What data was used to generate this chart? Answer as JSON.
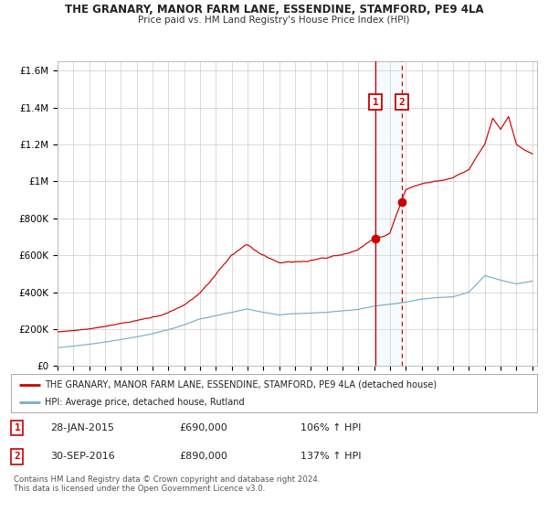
{
  "title": "THE GRANARY, MANOR FARM LANE, ESSENDINE, STAMFORD, PE9 4LA",
  "subtitle": "Price paid vs. HM Land Registry's House Price Index (HPI)",
  "red_label": "THE GRANARY, MANOR FARM LANE, ESSENDINE, STAMFORD, PE9 4LA (detached house)",
  "blue_label": "HPI: Average price, detached house, Rutland",
  "sale1_date": "28-JAN-2015",
  "sale1_price": 690000,
  "sale1_pct": "106%",
  "sale2_date": "30-SEP-2016",
  "sale2_price": 890000,
  "sale2_pct": "137%",
  "footer": "Contains HM Land Registry data © Crown copyright and database right 2024.\nThis data is licensed under the Open Government Licence v3.0.",
  "ylim": [
    0,
    1650000
  ],
  "bg_color": "#ffffff",
  "grid_color": "#cccccc",
  "red_color": "#cc0000",
  "blue_color": "#7aadcc",
  "sale1_x": 2015.08,
  "sale2_x": 2016.75,
  "blue_knots_x": [
    1995,
    1996,
    1997,
    1998,
    1999,
    2000,
    2001,
    2002,
    2003,
    2004,
    2005,
    2006,
    2007,
    2008,
    2009,
    2010,
    2011,
    2012,
    2013,
    2014,
    2015,
    2016,
    2017,
    2018,
    2019,
    2020,
    2021,
    2022,
    2023,
    2024,
    2025
  ],
  "blue_knots_y": [
    100000,
    108000,
    118000,
    130000,
    143000,
    158000,
    175000,
    195000,
    220000,
    250000,
    268000,
    285000,
    305000,
    285000,
    270000,
    278000,
    282000,
    285000,
    293000,
    300000,
    318000,
    328000,
    342000,
    358000,
    370000,
    375000,
    400000,
    490000,
    465000,
    445000,
    460000
  ],
  "red_knots_x": [
    1995,
    1996,
    1997,
    1998,
    1999,
    2000,
    2001,
    2002,
    2003,
    2004,
    2005,
    2006,
    2007,
    2008,
    2009,
    2010,
    2011,
    2012,
    2013,
    2014,
    2015.08,
    2015.5,
    2016.0,
    2016.75,
    2017,
    2018,
    2019,
    2020,
    2021,
    2022,
    2022.5,
    2023,
    2023.5,
    2024,
    2024.5,
    2025
  ],
  "red_knots_y": [
    185000,
    192000,
    202000,
    215000,
    228000,
    240000,
    258000,
    278000,
    320000,
    380000,
    480000,
    600000,
    640000,
    580000,
    540000,
    545000,
    555000,
    570000,
    590000,
    620000,
    690000,
    700000,
    720000,
    890000,
    950000,
    980000,
    1000000,
    1020000,
    1060000,
    1200000,
    1340000,
    1280000,
    1350000,
    1200000,
    1170000,
    1150000
  ]
}
